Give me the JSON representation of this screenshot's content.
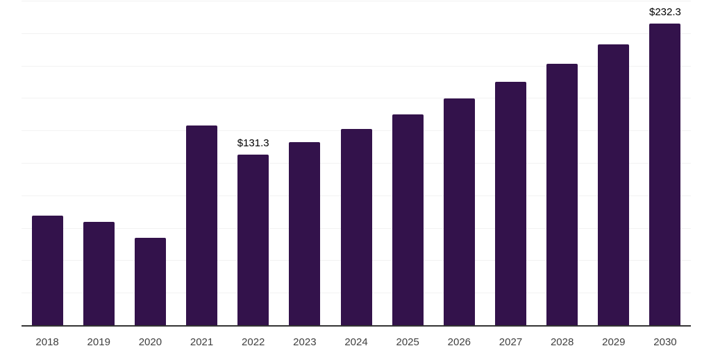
{
  "chart_data": {
    "type": "bar",
    "categories": [
      "2018",
      "2019",
      "2020",
      "2021",
      "2022",
      "2023",
      "2024",
      "2025",
      "2026",
      "2027",
      "2028",
      "2029",
      "2030"
    ],
    "values": [
      84.2,
      79.5,
      67.2,
      154.1,
      131.3,
      141.0,
      151.4,
      162.6,
      174.6,
      187.5,
      201.4,
      216.3,
      232.3
    ],
    "bar_labels": [
      "",
      "",
      "",
      "",
      "$131.3",
      "",
      "",
      "",
      "",
      "",
      "",
      "",
      "$232.3"
    ],
    "ylim": [
      0,
      250
    ],
    "grid_interval": 25,
    "grid": true,
    "legend": false,
    "y_axis_tick_labels_visible": false,
    "colors": {
      "bar": "#33124B",
      "gridline": "#F2F2F2",
      "axis_line": "#333333",
      "tick_label": "#3F3F3F",
      "data_label": "#000000",
      "background": "#FFFFFF"
    }
  }
}
